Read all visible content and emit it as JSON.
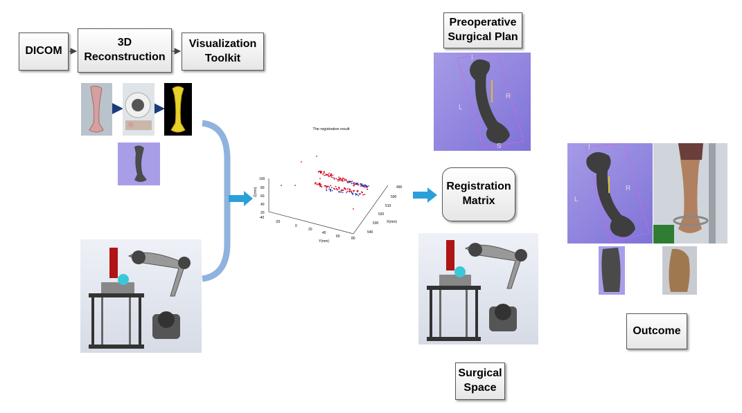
{
  "pipeline": {
    "dicom": "DICOM",
    "reconstruction": "3D\nReconstruction",
    "visualization": "Visualization\nToolkit"
  },
  "plan_label": "Preoperative\nSurgical Plan",
  "registration_label": "Registration\nMatrix",
  "surgical_space_label": "Surgical\nSpace",
  "outcome_label": "Outcome",
  "orient_labels": {
    "l": "L",
    "r": "R",
    "i": "I",
    "s": "S"
  },
  "plot": {
    "title": "The registration result",
    "zlabel": "Z(mm)",
    "ylabel": "Y(mm)",
    "xlabel": "X(mm)",
    "z_ticks": [
      "100",
      "80",
      "60",
      "40",
      "20"
    ],
    "y_ticks": [
      "-40",
      "-20",
      "0",
      "20",
      "40",
      "60",
      "80"
    ],
    "x_ticks": [
      "490",
      "500",
      "510",
      "520",
      "530",
      "540"
    ]
  },
  "colors": {
    "accent_arrow": "#2a9fd8",
    "bracket": "#8fb3dc",
    "plot_red": "#d0021b",
    "plot_blue": "#1f3fbf",
    "render_bg": "#9a8ce8"
  }
}
